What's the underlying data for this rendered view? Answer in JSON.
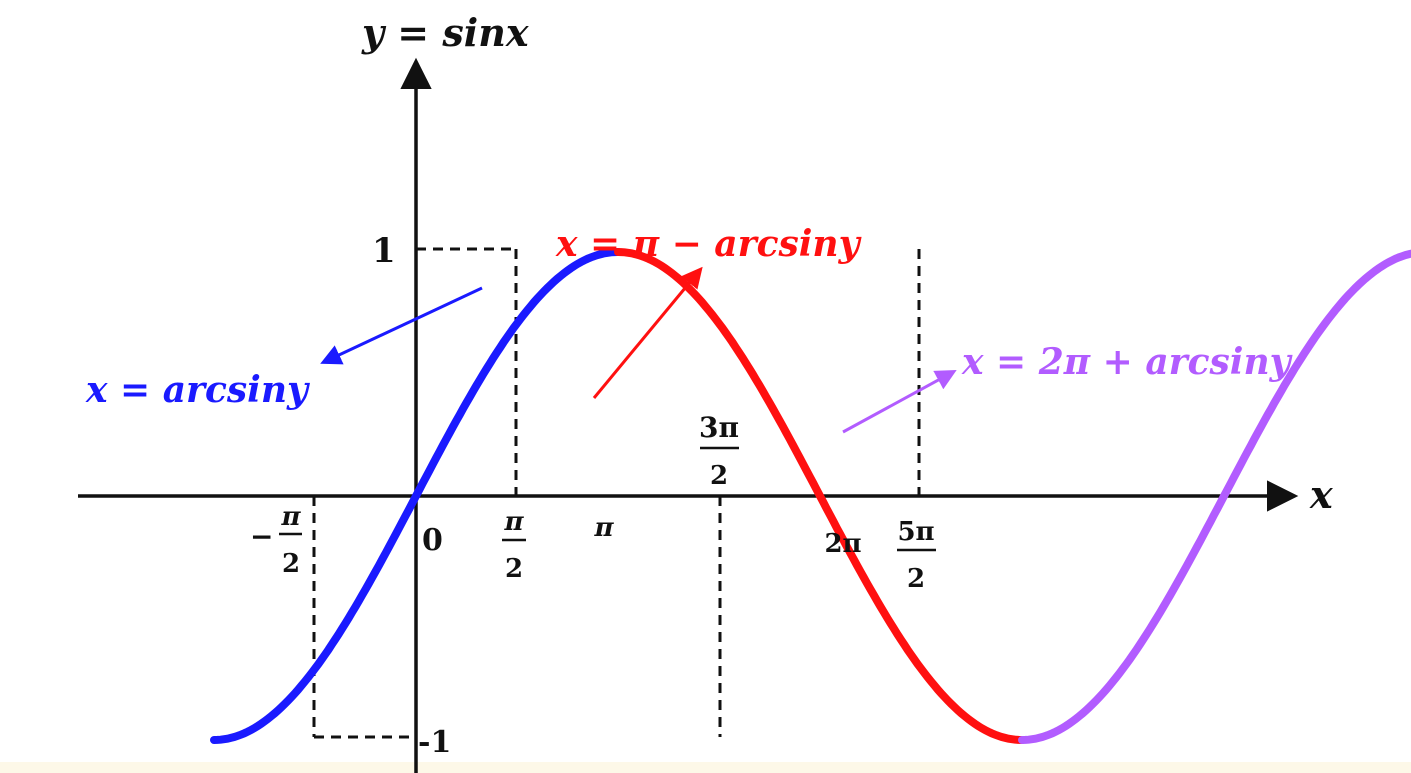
{
  "title": "y = sinx",
  "x_axis_label": "x",
  "colors": {
    "axis": "#111111",
    "branch1": "#1a1aff",
    "branch2": "#ff1010",
    "branch3": "#b25cff",
    "background": "#ffffff",
    "strip": "#fdf8e8"
  },
  "y_ticks": {
    "top": "1",
    "bottom": "-1",
    "origin": "0"
  },
  "x_ticks": {
    "neg_half_pi": {
      "sign": "−",
      "num": "π",
      "den": "2"
    },
    "half_pi": {
      "num": "π",
      "den": "2"
    },
    "pi": "π",
    "three_half_pi": {
      "num": "3π",
      "den": "2"
    },
    "two_pi": "2π",
    "five_half_pi": {
      "num": "5π",
      "den": "2"
    }
  },
  "annotations": {
    "branch1": "x = arcsiny",
    "branch2": "x = π − arcsiny",
    "branch3": "x = 2π + arcsiny"
  },
  "chart_data": {
    "type": "line",
    "title": "y = sinx",
    "xlabel": "x",
    "ylabel": "",
    "xlim": [
      -1.9,
      8.8
    ],
    "ylim": [
      -1.05,
      1.6
    ],
    "series": [
      {
        "name": "x = arcsiny",
        "x": [
          -1.5708,
          1.5708
        ],
        "function": "sin"
      },
      {
        "name": "x = π − arcsiny",
        "x": [
          1.5708,
          4.7124
        ],
        "function": "sin"
      },
      {
        "name": "x = 2π + arcsiny",
        "x": [
          4.7124,
          7.854
        ],
        "function": "sin"
      }
    ]
  }
}
